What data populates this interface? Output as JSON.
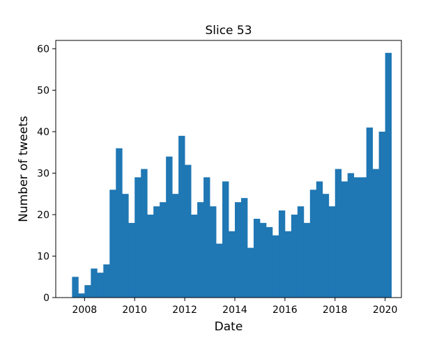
{
  "chart_data": {
    "type": "bar",
    "title": "Slice 53",
    "xlabel": "Date",
    "ylabel": "Number of tweets",
    "x_axis": {
      "min": 2006.85,
      "max": 2020.65,
      "ticks": [
        2008,
        2010,
        2012,
        2014,
        2016,
        2018,
        2020
      ],
      "tick_labels": [
        "2008",
        "2010",
        "2012",
        "2014",
        "2016",
        "2018",
        "2020"
      ]
    },
    "y_axis": {
      "min": 0,
      "max": 62,
      "ticks": [
        0,
        10,
        20,
        30,
        40,
        50,
        60
      ],
      "tick_labels": [
        "0",
        "10",
        "20",
        "30",
        "40",
        "50",
        "60"
      ]
    },
    "bins": {
      "start": 2007.5,
      "width": 0.25
    },
    "values": [
      5,
      1,
      3,
      7,
      6,
      8,
      26,
      36,
      25,
      18,
      29,
      31,
      20,
      22,
      23,
      34,
      25,
      39,
      32,
      20,
      23,
      29,
      22,
      13,
      28,
      16,
      23,
      24,
      12,
      19,
      18,
      17,
      15,
      21,
      16,
      20,
      22,
      18,
      26,
      28,
      25,
      22,
      31,
      28,
      30,
      29,
      29,
      41,
      31,
      40,
      59
    ],
    "bar_color": "#1f77b4",
    "grid": false,
    "legend": "none"
  }
}
